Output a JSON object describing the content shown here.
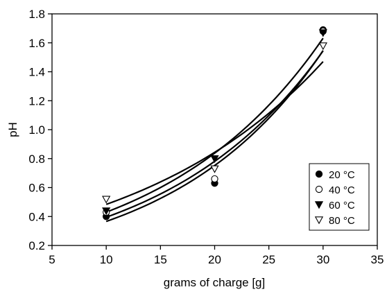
{
  "chart_data": {
    "type": "scatter",
    "title": "",
    "xlabel": "grams of charge [g]",
    "ylabel": "pH",
    "xlim": [
      5,
      35
    ],
    "ylim": [
      0.2,
      1.8
    ],
    "xticks": [
      5,
      10,
      15,
      20,
      25,
      30,
      35
    ],
    "yticks": [
      0.2,
      0.4,
      0.6,
      0.8,
      1.0,
      1.2,
      1.4,
      1.6,
      1.8
    ],
    "xtick_labels": [
      "5",
      "10",
      "15",
      "20",
      "25",
      "30",
      "35"
    ],
    "ytick_labels": [
      "0.2",
      "0.4",
      "0.6",
      "0.8",
      "1.0",
      "1.2",
      "1.4",
      "1.6",
      "1.8"
    ],
    "grid": false,
    "legend_position": "lower-right",
    "series": [
      {
        "name": "20 °C",
        "marker": "filled-circle",
        "x": [
          10,
          20,
          30
        ],
        "y": [
          0.4,
          0.63,
          1.69
        ],
        "fit": "exponential"
      },
      {
        "name": "40 °C",
        "marker": "open-circle",
        "x": [
          10,
          20,
          30
        ],
        "y": [
          0.43,
          0.66,
          1.68
        ],
        "fit": "exponential"
      },
      {
        "name": "60 °C",
        "marker": "filled-triangle-down",
        "x": [
          10,
          20,
          30
        ],
        "y": [
          0.44,
          0.8,
          1.67
        ],
        "fit": "exponential"
      },
      {
        "name": "80 °C",
        "marker": "open-triangle-down",
        "x": [
          10,
          20,
          30
        ],
        "y": [
          0.52,
          0.73,
          1.58
        ],
        "fit": "exponential"
      }
    ]
  }
}
